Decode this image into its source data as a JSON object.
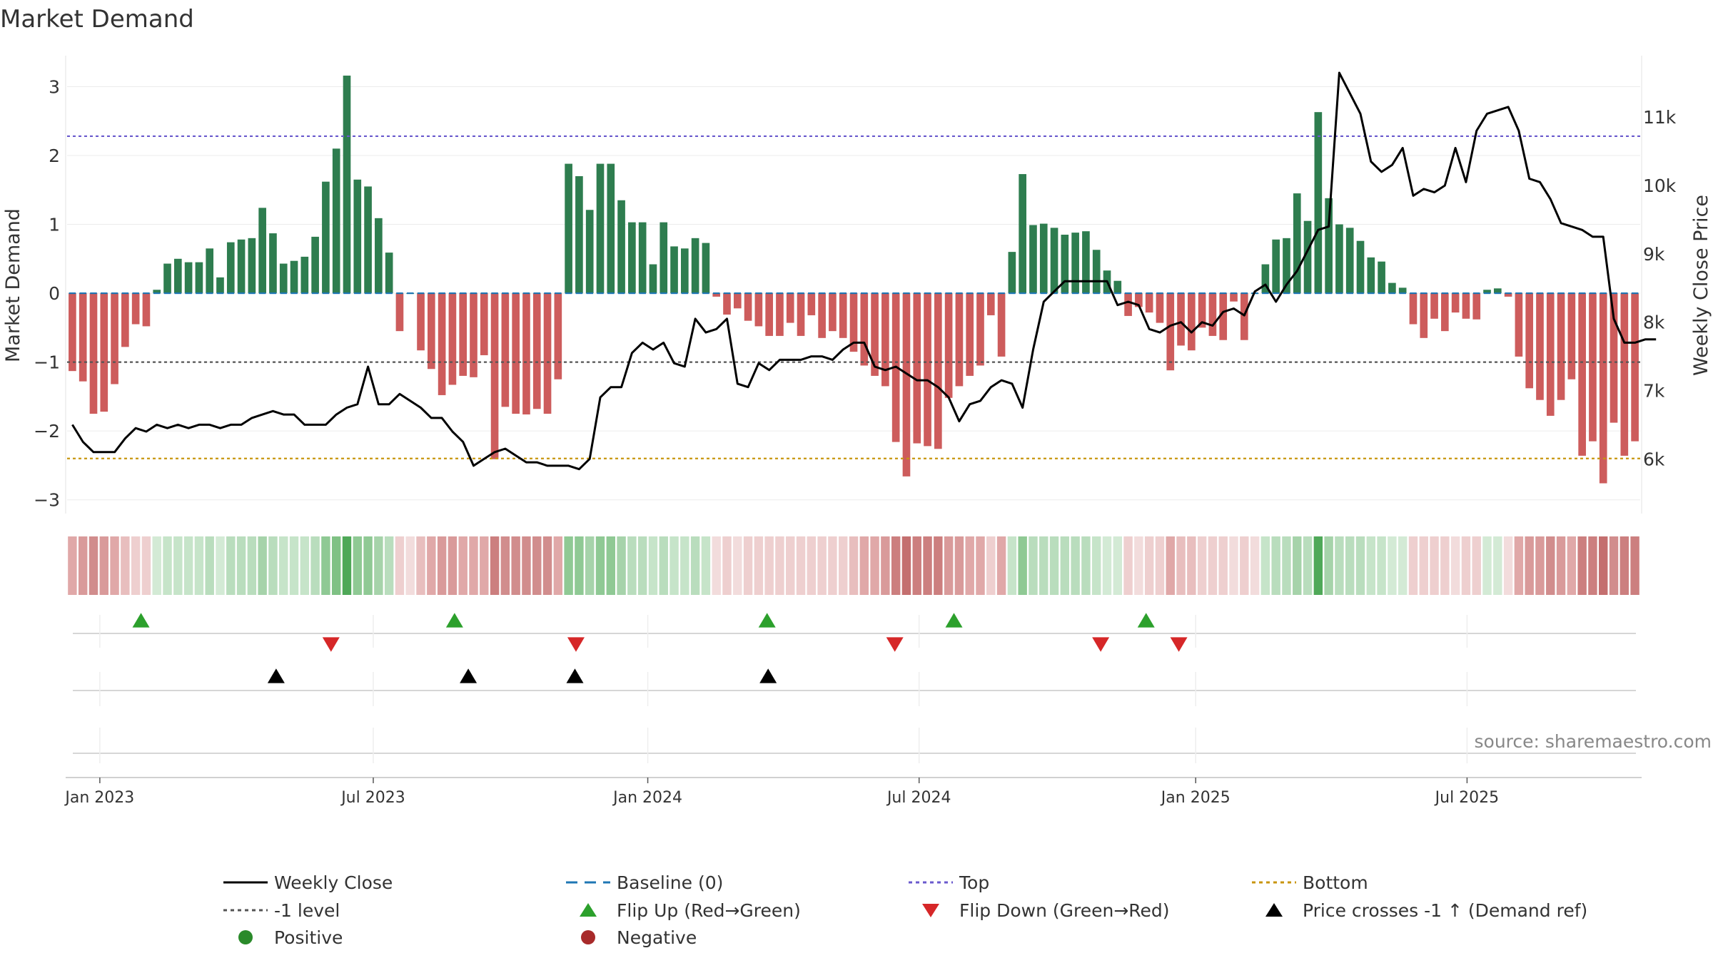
{
  "chart_data": {
    "type": "bar",
    "title": "Market Demand",
    "ylabel": "Market Demand",
    "y2label": "Weekly Close Price",
    "ylim": [
      -3.2,
      3.45
    ],
    "y2lim": [
      5200,
      11900
    ],
    "yticks": [
      "3",
      "2",
      "1",
      "0",
      "−1",
      "−2",
      "−3"
    ],
    "ytick_values": [
      3,
      2,
      1,
      0,
      -1,
      -2,
      -3
    ],
    "y2ticks": [
      "11k",
      "10k",
      "9k",
      "8k",
      "7k",
      "6k"
    ],
    "y2tick_values": [
      11000,
      10000,
      9000,
      8000,
      7000,
      6000
    ],
    "xticks": [
      "Jan 2023",
      "Jul 2023",
      "Jan 2024",
      "Jul 2024",
      "Jan 2025",
      "Jul 2025"
    ],
    "xtick_weeks": [
      2.6,
      28.5,
      54.5,
      80.2,
      106.4,
      132.1
    ],
    "top_level": 2.28,
    "bottom_level": -2.4,
    "minus_one_level": -1.0,
    "demand": [
      -1.13,
      -1.28,
      -1.75,
      -1.72,
      -1.32,
      -0.78,
      -0.45,
      -0.48,
      0.05,
      0.43,
      0.5,
      0.45,
      0.45,
      0.65,
      0.23,
      0.74,
      0.78,
      0.8,
      1.24,
      0.87,
      0.43,
      0.47,
      0.53,
      0.82,
      1.62,
      2.1,
      3.16,
      1.65,
      1.55,
      1.09,
      0.59,
      -0.55,
      0.0,
      -0.83,
      -1.1,
      -1.48,
      -1.33,
      -1.2,
      -1.22,
      -0.9,
      -2.41,
      -1.65,
      -1.75,
      -1.76,
      -1.68,
      -1.75,
      -1.25,
      1.88,
      1.7,
      1.21,
      1.88,
      1.88,
      1.35,
      1.03,
      1.03,
      0.42,
      1.03,
      0.68,
      0.65,
      0.8,
      0.73,
      -0.05,
      -0.31,
      -0.22,
      -0.4,
      -0.48,
      -0.62,
      -0.62,
      -0.43,
      -0.62,
      -0.32,
      -0.65,
      -0.55,
      -0.65,
      -0.85,
      -1.05,
      -1.2,
      -1.35,
      -2.16,
      -2.66,
      -2.18,
      -2.22,
      -2.26,
      -1.52,
      -1.35,
      -1.2,
      -1.05,
      -0.32,
      -0.92,
      0.6,
      1.73,
      0.99,
      1.01,
      0.95,
      0.85,
      0.88,
      0.9,
      0.63,
      0.33,
      0.18,
      -0.33,
      -0.2,
      -0.28,
      -0.43,
      -1.12,
      -0.76,
      -0.83,
      -0.5,
      -0.62,
      -0.68,
      -0.12,
      -0.68,
      0.0,
      0.42,
      0.78,
      0.8,
      1.45,
      1.05,
      2.63,
      1.38,
      1.0,
      0.95,
      0.76,
      0.52,
      0.46,
      0.15,
      0.08,
      -0.45,
      -0.65,
      -0.37,
      -0.55,
      -0.28,
      -0.37,
      -0.38,
      0.05,
      0.07,
      -0.05,
      -0.92,
      -1.38,
      -1.55,
      -1.78,
      -1.55,
      -1.25,
      -2.36,
      -2.15,
      -2.76,
      -1.88,
      -2.36,
      -2.15
    ],
    "price": [
      6500,
      6250,
      6100,
      6100,
      6100,
      6300,
      6450,
      6400,
      6500,
      6450,
      6500,
      6450,
      6500,
      6500,
      6450,
      6500,
      6500,
      6600,
      6650,
      6700,
      6650,
      6650,
      6500,
      6500,
      6500,
      6650,
      6750,
      6800,
      7350,
      6800,
      6800,
      6950,
      6850,
      6750,
      6600,
      6600,
      6400,
      6250,
      5900,
      6000,
      6100,
      6150,
      6050,
      5950,
      5950,
      5900,
      5900,
      5900,
      5850,
      6000,
      6900,
      7050,
      7050,
      7550,
      7700,
      7600,
      7700,
      7400,
      7350,
      8050,
      7850,
      7900,
      8050,
      7100,
      7050,
      7400,
      7300,
      7450,
      7450,
      7450,
      7500,
      7500,
      7450,
      7600,
      7700,
      7700,
      7350,
      7300,
      7350,
      7250,
      7150,
      7150,
      7050,
      6900,
      6550,
      6800,
      6850,
      7050,
      7150,
      7100,
      6750,
      7600,
      8300,
      8450,
      8600,
      8600,
      8600,
      8600,
      8600,
      8250,
      8300,
      8250,
      7900,
      7850,
      7950,
      8000,
      7850,
      8000,
      7950,
      8150,
      8200,
      8100,
      8450,
      8550,
      8300,
      8550,
      8750,
      9050,
      9350,
      9400,
      11650,
      11350,
      11050,
      10350,
      10200,
      10300,
      10550,
      9850,
      9950,
      9900,
      10000,
      10550,
      10050,
      10800,
      11050,
      11100,
      11150,
      10800,
      10100,
      10050,
      9800,
      9450,
      9400,
      9350,
      9250,
      9250,
      8050,
      7700,
      7700,
      7750,
      7750
    ],
    "heat_colors": [
      "#e0a8a8",
      "#d99a9a",
      "#d18d8d",
      "#d99a9a",
      "#e0a8a8",
      "#e8bebe",
      "#eecfcf",
      "#eecfcf",
      "#d3ead5",
      "#c6e4c9",
      "#c6e4c9",
      "#c6e4c9",
      "#c6e4c9",
      "#b9ddbd",
      "#d3ead5",
      "#b9ddbd",
      "#b9ddbd",
      "#b9ddbd",
      "#a6d3aa",
      "#b9ddbd",
      "#c6e4c9",
      "#c6e4c9",
      "#c6e4c9",
      "#b9ddbd",
      "#8fc994",
      "#7fc184",
      "#4fa858",
      "#8fc994",
      "#8fc994",
      "#a6d3aa",
      "#b9ddbd",
      "#eecfcf",
      "#f2dcdc",
      "#e8bebe",
      "#e0a8a8",
      "#d99a9a",
      "#d99a9a",
      "#e0a8a8",
      "#e0a8a8",
      "#e0a8a8",
      "#cc7f7f",
      "#d18d8d",
      "#d18d8d",
      "#d18d8d",
      "#d18d8d",
      "#d18d8d",
      "#e0a8a8",
      "#8fc994",
      "#8fc994",
      "#a6d3aa",
      "#8fc994",
      "#8fc994",
      "#a6d3aa",
      "#b9ddbd",
      "#b9ddbd",
      "#c6e4c9",
      "#b9ddbd",
      "#c6e4c9",
      "#c6e4c9",
      "#b9ddbd",
      "#c6e4c9",
      "#f2dcdc",
      "#eecfcf",
      "#f2dcdc",
      "#eecfcf",
      "#eecfcf",
      "#eecfcf",
      "#eecfcf",
      "#eecfcf",
      "#eecfcf",
      "#eecfcf",
      "#eecfcf",
      "#eecfcf",
      "#eecfcf",
      "#e8bebe",
      "#e0a8a8",
      "#e0a8a8",
      "#d99a9a",
      "#cc7f7f",
      "#c46f6f",
      "#cc7f7f",
      "#cc7f7f",
      "#cc7f7f",
      "#d99a9a",
      "#d99a9a",
      "#e0a8a8",
      "#e0a8a8",
      "#eecfcf",
      "#e0a8a8",
      "#c6e4c9",
      "#8fc994",
      "#b9ddbd",
      "#b9ddbd",
      "#b9ddbd",
      "#b9ddbd",
      "#b9ddbd",
      "#b9ddbd",
      "#c6e4c9",
      "#d3ead5",
      "#d3ead5",
      "#eecfcf",
      "#f2dcdc",
      "#eecfcf",
      "#eecfcf",
      "#e0a8a8",
      "#e8bebe",
      "#e8bebe",
      "#eecfcf",
      "#eecfcf",
      "#eecfcf",
      "#f2dcdc",
      "#eecfcf",
      "#f2dcdc",
      "#c6e4c9",
      "#b9ddbd",
      "#b9ddbd",
      "#a6d3aa",
      "#b9ddbd",
      "#4fa858",
      "#a6d3aa",
      "#b9ddbd",
      "#b9ddbd",
      "#b9ddbd",
      "#c6e4c9",
      "#c6e4c9",
      "#d3ead5",
      "#d3ead5",
      "#eecfcf",
      "#eecfcf",
      "#eecfcf",
      "#eecfcf",
      "#f2dcdc",
      "#eecfcf",
      "#eecfcf",
      "#d3ead5",
      "#d3ead5",
      "#f2dcdc",
      "#e0a8a8",
      "#d99a9a",
      "#d99a9a",
      "#d18d8d",
      "#d99a9a",
      "#e0a8a8",
      "#cc7f7f",
      "#cc7f7f",
      "#c46f6f",
      "#d18d8d",
      "#cc7f7f",
      "#cc7f7f"
    ],
    "flip_up_weeks": [
      6.5,
      36.2,
      65.8,
      83.5,
      101.7
    ],
    "flip_down_weeks": [
      24.5,
      47.7,
      77.9,
      97.4,
      104.8
    ],
    "price_cross_weeks": [
      19.3,
      37.5,
      47.6,
      65.9
    ],
    "legend": [
      {
        "label": "Weekly Close",
        "kind": "line",
        "color": "#000000"
      },
      {
        "label": "Baseline (0)",
        "kind": "dash",
        "color": "#1f77b4"
      },
      {
        "label": "Top",
        "kind": "dot",
        "color": "#6a5acd"
      },
      {
        "label": "Bottom",
        "kind": "dot",
        "color": "#c8960f"
      },
      {
        "label": "-1 level",
        "kind": "dot",
        "color": "#555555"
      },
      {
        "label": "Flip Up (Red→Green)",
        "kind": "tri-up",
        "color": "#2ca02c"
      },
      {
        "label": "Flip Down (Green→Red)",
        "kind": "tri-down",
        "color": "#d62728"
      },
      {
        "label": "Price crosses -1 ↑ (Demand ref)",
        "kind": "tri-up",
        "color": "#000000"
      },
      {
        "label": "Positive",
        "kind": "circle",
        "color": "#2a8a2a"
      },
      {
        "label": "Negative",
        "kind": "circle",
        "color": "#a82a2a"
      }
    ],
    "colors": {
      "positive": "#2e7d4f",
      "negative": "#cd5c5c",
      "baseline": "#1f77b4",
      "top": "#6a5acd",
      "bottom": "#c8960f",
      "minus_one": "#555555",
      "price": "#000000"
    }
  },
  "source_label": "source: sharemaestro.com"
}
